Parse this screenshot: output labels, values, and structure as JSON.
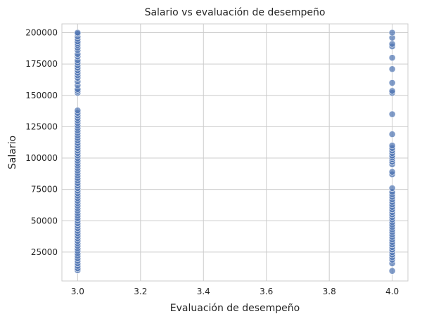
{
  "chart_data": {
    "type": "scatter",
    "title": "Salario vs evaluación de desempeño",
    "xlabel": "Evaluación de desempeño",
    "ylabel": "Salario",
    "xlim": [
      2.95,
      4.05
    ],
    "ylim": [
      2000,
      207000
    ],
    "x_ticks": [
      3.0,
      3.2,
      3.4,
      3.6,
      3.8,
      4.0
    ],
    "x_tick_labels": [
      "3.0",
      "3.2",
      "3.4",
      "3.6",
      "3.8",
      "4.0"
    ],
    "y_ticks": [
      25000,
      50000,
      75000,
      100000,
      125000,
      150000,
      175000,
      200000
    ],
    "y_tick_labels": [
      "25000",
      "50000",
      "75000",
      "100000",
      "125000",
      "150000",
      "175000",
      "200000"
    ],
    "grid": true,
    "colors": {
      "point": "#4c72b0",
      "grid": "#cccccc",
      "axes": "#cccccc",
      "text": "#262626"
    },
    "series": [
      {
        "x": 3.0,
        "values": [
          10500,
          12000,
          14000,
          16000,
          18000,
          20000,
          22000,
          24000,
          26000,
          28000,
          30000,
          32000,
          34000,
          36000,
          38000,
          40000,
          42000,
          44000,
          46000,
          48000,
          50000,
          52000,
          54000,
          56000,
          58000,
          60000,
          62000,
          64000,
          66000,
          68000,
          70000,
          72000,
          74000,
          76000,
          78000,
          80000,
          82000,
          84000,
          86000,
          88000,
          90000,
          92000,
          94000,
          96000,
          98000,
          100000,
          102000,
          104000,
          106000,
          108000,
          110000,
          112000,
          114000,
          116000,
          118000,
          120000,
          122000,
          124000,
          126000,
          128000,
          130000,
          132000,
          134000,
          136000,
          138000,
          152000,
          153500,
          155000,
          158000,
          161000,
          164000,
          166000,
          168000,
          170000,
          172000,
          174000,
          176000,
          178000,
          181000,
          183000,
          186000,
          188000,
          190000,
          191500,
          193000,
          195000,
          197000,
          199000,
          200000
        ]
      },
      {
        "x": 4.0,
        "values": [
          10000,
          16000,
          19000,
          21000,
          23000,
          25000,
          27000,
          29000,
          31000,
          33000,
          35000,
          37000,
          39000,
          41000,
          43000,
          45000,
          47000,
          49000,
          51000,
          53000,
          55000,
          57000,
          59000,
          61000,
          63000,
          65000,
          67000,
          69000,
          71000,
          73000,
          76000,
          87000,
          89000,
          95000,
          97000,
          99000,
          100500,
          102000,
          104000,
          106000,
          108000,
          110000,
          119000,
          135000,
          152000,
          153500,
          160000,
          171000,
          180000,
          189000,
          191000,
          196000,
          200000
        ]
      }
    ]
  }
}
